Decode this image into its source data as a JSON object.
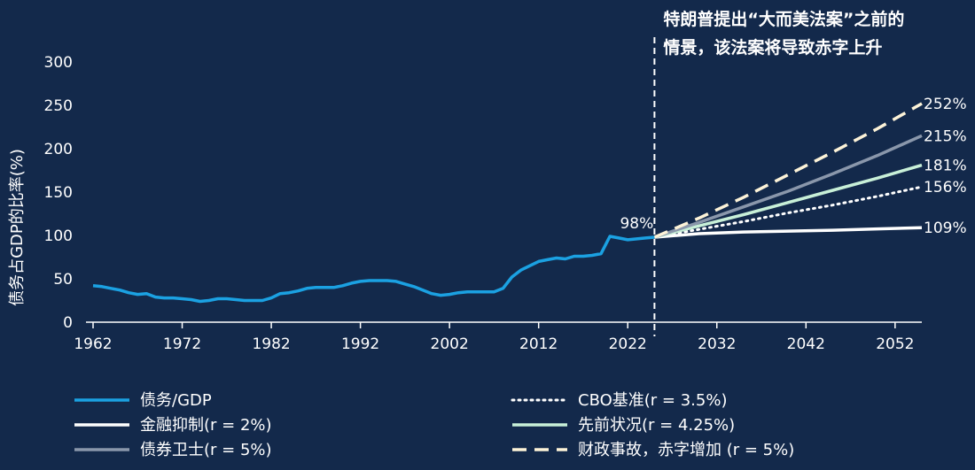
{
  "chart_data": {
    "type": "line",
    "ylabel": "债务占GDP的比率(%)",
    "ylim": [
      0,
      300
    ],
    "yticks": [
      0,
      50,
      100,
      150,
      200,
      250,
      300
    ],
    "xlim": [
      1962,
      2055
    ],
    "xticks": [
      "1962",
      "1972",
      "1982",
      "1992",
      "2002",
      "2012",
      "2022",
      "2032",
      "2042",
      "2052"
    ],
    "grid": false,
    "legend_position": "bottom",
    "divider_year": 2025,
    "annotation": {
      "line1": "特朗普提出“大而美法案”之前的",
      "line2": "情景，该法案将导致赤字上升"
    },
    "point_label": "98%",
    "series": [
      {
        "name": "债务/GDP",
        "color": "#1ba1e2",
        "style": "solid",
        "x": [
          1962,
          1963,
          1964,
          1965,
          1966,
          1967,
          1968,
          1969,
          1970,
          1971,
          1972,
          1973,
          1974,
          1975,
          1976,
          1977,
          1978,
          1979,
          1980,
          1981,
          1982,
          1983,
          1984,
          1985,
          1986,
          1987,
          1988,
          1989,
          1990,
          1991,
          1992,
          1993,
          1994,
          1995,
          1996,
          1997,
          1998,
          1999,
          2000,
          2001,
          2002,
          2003,
          2004,
          2005,
          2006,
          2007,
          2008,
          2009,
          2010,
          2011,
          2012,
          2013,
          2014,
          2015,
          2016,
          2017,
          2018,
          2019,
          2020,
          2021,
          2022,
          2023,
          2024,
          2025
        ],
        "values": [
          42,
          41,
          39,
          37,
          34,
          32,
          33,
          29,
          28,
          28,
          27,
          26,
          24,
          25,
          27,
          27,
          26,
          25,
          25,
          25,
          28,
          33,
          34,
          36,
          39,
          40,
          40,
          40,
          42,
          45,
          47,
          48,
          48,
          48,
          47,
          44,
          41,
          37,
          33,
          31,
          32,
          34,
          35,
          35,
          35,
          35,
          39,
          52,
          60,
          65,
          70,
          72,
          74,
          73,
          76,
          76,
          77,
          79,
          99,
          97,
          95,
          96,
          97,
          98
        ]
      },
      {
        "name": "金融抑制(r = 2%)",
        "color": "#ffffff",
        "style": "solid",
        "x": [
          2025,
          2030,
          2035,
          2040,
          2045,
          2050,
          2055
        ],
        "values": [
          98,
          102,
          104,
          105,
          106,
          107.5,
          109
        ]
      },
      {
        "name": "债券卫士(r = 5%)",
        "color": "#8a97ab",
        "style": "solid",
        "x": [
          2025,
          2030,
          2035,
          2040,
          2045,
          2050,
          2055
        ],
        "values": [
          98,
          115,
          133,
          151,
          171,
          192,
          215
        ]
      },
      {
        "name": "CBO基准(r = 3.5%)",
        "color": "#ffffff",
        "style": "dotted",
        "x": [
          2025,
          2030,
          2035,
          2040,
          2045,
          2050,
          2055
        ],
        "values": [
          98,
          107,
          116,
          126,
          135,
          145,
          156
        ]
      },
      {
        "name": "先前状况(r = 4.25%)",
        "color": "#c8f0d8",
        "style": "solid",
        "x": [
          2025,
          2030,
          2035,
          2040,
          2045,
          2050,
          2055
        ],
        "values": [
          98,
          111,
          124,
          138,
          152,
          166,
          181
        ]
      },
      {
        "name": "财政事故，赤字增加 (r = 5%)",
        "color": "#fdf3d8",
        "style": "dashed",
        "x": [
          2025,
          2030,
          2035,
          2040,
          2045,
          2050,
          2055
        ],
        "values": [
          98,
          120,
          144,
          170,
          196,
          223,
          252
        ]
      }
    ],
    "end_labels": [
      {
        "text": "252%",
        "value": 252
      },
      {
        "text": "215%",
        "value": 215
      },
      {
        "text": "181%",
        "value": 181
      },
      {
        "text": "156%",
        "value": 156
      },
      {
        "text": "109%",
        "value": 109
      }
    ],
    "legend": {
      "left": [
        {
          "label": "债务/GDP",
          "series": 0
        },
        {
          "label": "金融抑制(r = 2%)",
          "series": 1
        },
        {
          "label": "债券卫士(r = 5%)",
          "series": 2
        }
      ],
      "right": [
        {
          "label": "CBO基准(r = 3.5%)",
          "series": 3
        },
        {
          "label": "先前状况(r = 4.25%)",
          "series": 4
        },
        {
          "label": "财政事故，赤字增加 (r = 5%)",
          "series": 5
        }
      ]
    }
  }
}
